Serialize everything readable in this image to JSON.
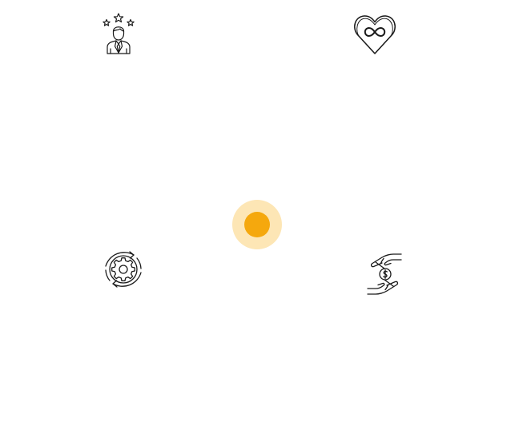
{
  "colors": {
    "background": "#ffffff",
    "icon_stroke": "#1a1a1a",
    "hotspot_core": "#f5a80d",
    "hotspot_halo": "#fde6b5"
  },
  "icons": [
    {
      "name": "person-with-stars-icon"
    },
    {
      "name": "infinity-heart-icon"
    },
    {
      "name": "gear-cycle-icon"
    },
    {
      "name": "hands-holding-coin-icon"
    }
  ],
  "hotspot": {
    "name": "center-hotspot"
  }
}
